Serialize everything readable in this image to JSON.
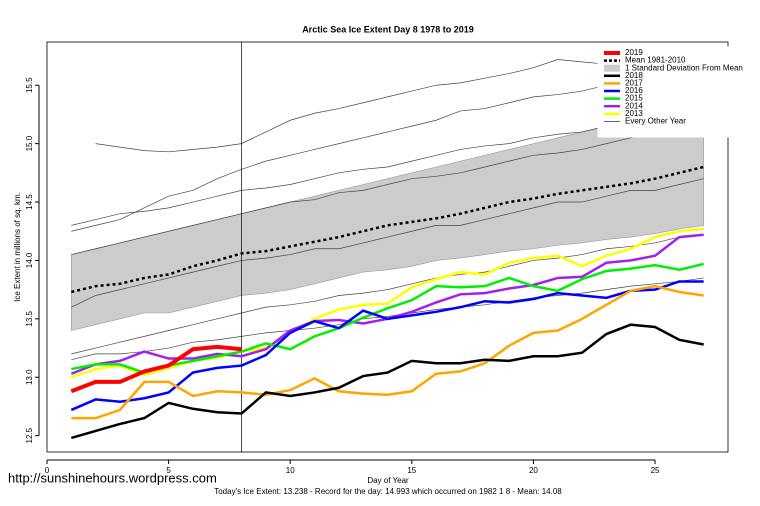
{
  "chart_data": {
    "type": "line",
    "title": "Arctic Sea Ice Extent Day 8 1978 to 2019",
    "x_label": "Day of Year",
    "y_label": "Ice Extent in millions of sq. km.",
    "footer": "Today's Ice Extent: 13.238 - Record for the day: 14.993 which occurred on 1982 1 8 - Mean: 14.08",
    "watermark": "http://sunshinehours.wordpress.com",
    "x": [
      1,
      2,
      3,
      4,
      5,
      6,
      7,
      8,
      9,
      10,
      11,
      12,
      13,
      14,
      15,
      16,
      17,
      18,
      19,
      20,
      21,
      22,
      23,
      24,
      25,
      26,
      27
    ],
    "xlim": [
      0,
      28
    ],
    "xticks": [
      0,
      5,
      10,
      15,
      20,
      25
    ],
    "ylim": [
      12.36,
      15.87
    ],
    "yticks": [
      12.5,
      {
        "value": 13,
        "label": "13.0"
      },
      13.5,
      {
        "value": 14,
        "label": "14.0"
      },
      14.5,
      {
        "value": 15,
        "label": "15.0"
      },
      15.5
    ],
    "vline": 8,
    "band": {
      "name": "1 Standard Deviation From Mean",
      "color": "#cccccc",
      "upper": [
        14.05,
        14.1,
        14.15,
        14.2,
        14.25,
        14.3,
        14.35,
        14.4,
        14.45,
        14.5,
        14.55,
        14.6,
        14.65,
        14.7,
        14.75,
        14.8,
        14.85,
        14.9,
        14.95,
        15.0,
        15.05,
        15.1,
        15.15,
        15.2,
        15.22,
        15.25,
        15.27
      ],
      "lower": [
        13.4,
        13.45,
        13.5,
        13.55,
        13.55,
        13.6,
        13.65,
        13.7,
        13.72,
        13.75,
        13.8,
        13.85,
        13.9,
        13.92,
        13.95,
        14.0,
        14.02,
        14.05,
        14.08,
        14.1,
        14.13,
        14.15,
        14.18,
        14.2,
        14.23,
        14.27,
        14.3
      ]
    },
    "other_years": {
      "name": "Every Other Year",
      "color": "#444444",
      "lines": [
        [
          null,
          15.0,
          14.97,
          14.94,
          14.93,
          14.95,
          14.97,
          15.0,
          15.1,
          15.2,
          15.26,
          15.3,
          15.35,
          15.4,
          15.45,
          15.5,
          15.52,
          15.56,
          15.6,
          15.65,
          15.72,
          15.7,
          15.68,
          15.7,
          15.72,
          15.7,
          15.72
        ],
        [
          14.25,
          14.3,
          14.35,
          14.45,
          14.55,
          14.6,
          14.7,
          14.78,
          14.85,
          14.9,
          14.95,
          15.0,
          15.05,
          15.1,
          15.15,
          15.2,
          15.28,
          15.3,
          15.35,
          15.4,
          15.42,
          15.45,
          15.5,
          15.48,
          15.52,
          15.55,
          15.58
        ],
        [
          14.05,
          14.1,
          14.15,
          14.2,
          14.25,
          14.3,
          14.35,
          14.4,
          14.45,
          14.5,
          14.52,
          14.58,
          14.6,
          14.65,
          14.7,
          14.72,
          14.75,
          14.8,
          14.85,
          14.9,
          14.92,
          14.95,
          15.0,
          15.05,
          15.1,
          15.15,
          15.2
        ],
        [
          13.6,
          13.7,
          13.75,
          13.8,
          13.85,
          13.9,
          13.95,
          14.0,
          14.02,
          14.05,
          14.1,
          14.1,
          14.15,
          14.2,
          14.25,
          14.3,
          14.3,
          14.35,
          14.4,
          14.45,
          14.5,
          14.5,
          14.55,
          14.6,
          14.6,
          14.65,
          14.7
        ],
        [
          13.2,
          13.25,
          13.3,
          13.35,
          13.4,
          13.45,
          13.5,
          13.55,
          13.6,
          13.62,
          13.65,
          13.7,
          13.72,
          13.75,
          13.8,
          13.85,
          13.88,
          13.9,
          13.95,
          14.0,
          14.02,
          14.05,
          14.1,
          14.12,
          14.15,
          14.2,
          14.22
        ],
        [
          13.15,
          13.2,
          13.2,
          13.22,
          13.25,
          13.3,
          13.32,
          13.35,
          13.38,
          13.4,
          13.42,
          13.45,
          13.5,
          13.52,
          13.55,
          13.58,
          13.6,
          13.62,
          13.65,
          13.68,
          13.7,
          13.72,
          13.75,
          13.78,
          13.8,
          13.82,
          13.85
        ],
        [
          14.3,
          14.35,
          14.4,
          14.42,
          14.45,
          14.5,
          14.55,
          14.6,
          14.62,
          14.65,
          14.7,
          14.75,
          14.78,
          14.8,
          14.85,
          14.9,
          14.95,
          14.98,
          15.0,
          15.05,
          15.08,
          15.1,
          15.15,
          15.2,
          15.22,
          15.25,
          15.3
        ]
      ]
    },
    "series": [
      {
        "name": "2019",
        "color": "#ff0000",
        "width": 4,
        "values": [
          12.88,
          12.96,
          12.96,
          13.05,
          13.1,
          13.24,
          13.26,
          13.24,
          null,
          null,
          null,
          null,
          null,
          null,
          null,
          null,
          null,
          null,
          null,
          null,
          null,
          null,
          null,
          null,
          null,
          null,
          null
        ]
      },
      {
        "name": "Mean 1981-2010",
        "color": "#000000",
        "width": 2.5,
        "dash": true,
        "values": [
          13.73,
          13.78,
          13.8,
          13.85,
          13.88,
          13.95,
          14.0,
          14.06,
          14.08,
          14.12,
          14.16,
          14.2,
          14.25,
          14.3,
          14.33,
          14.36,
          14.4,
          14.45,
          14.5,
          14.53,
          14.57,
          14.6,
          14.63,
          14.66,
          14.7,
          14.75,
          14.8
        ]
      },
      {
        "name": "2018",
        "color": "#000000",
        "width": 2.5,
        "values": [
          12.48,
          12.54,
          12.6,
          12.65,
          12.78,
          12.73,
          12.7,
          12.69,
          12.87,
          12.84,
          12.87,
          12.91,
          13.01,
          13.04,
          13.14,
          13.12,
          13.12,
          13.15,
          13.14,
          13.18,
          13.18,
          13.21,
          13.37,
          13.45,
          13.43,
          13.32,
          13.28
        ]
      },
      {
        "name": "2017",
        "color": "#ffa500",
        "width": 2.5,
        "values": [
          12.65,
          12.65,
          12.72,
          12.96,
          12.96,
          12.84,
          12.88,
          12.87,
          12.85,
          12.89,
          12.99,
          12.88,
          12.86,
          12.85,
          12.88,
          13.03,
          13.05,
          13.12,
          13.27,
          13.38,
          13.4,
          13.5,
          13.62,
          13.74,
          13.78,
          13.73,
          13.7
        ]
      },
      {
        "name": "2016",
        "color": "#0000ff",
        "width": 2.5,
        "values": [
          12.72,
          12.81,
          12.79,
          12.82,
          12.87,
          13.04,
          13.08,
          13.1,
          13.19,
          13.38,
          13.48,
          13.42,
          13.57,
          13.5,
          13.53,
          13.56,
          13.6,
          13.65,
          13.64,
          13.67,
          13.72,
          13.7,
          13.68,
          13.74,
          13.75,
          13.82,
          13.82
        ]
      },
      {
        "name": "2015",
        "color": "#00ee00",
        "width": 2.5,
        "values": [
          13.07,
          13.11,
          13.11,
          13.04,
          13.1,
          13.14,
          13.18,
          13.22,
          13.29,
          13.24,
          13.35,
          13.42,
          13.51,
          13.59,
          13.66,
          13.78,
          13.77,
          13.78,
          13.85,
          13.78,
          13.74,
          13.84,
          13.91,
          13.93,
          13.96,
          13.92,
          13.97
        ]
      },
      {
        "name": "2014",
        "color": "#a020f0",
        "width": 2.5,
        "values": [
          13.03,
          13.11,
          13.14,
          13.22,
          13.16,
          13.16,
          13.2,
          13.18,
          13.24,
          13.4,
          13.48,
          13.49,
          13.46,
          13.5,
          13.56,
          13.64,
          13.71,
          13.72,
          13.76,
          13.79,
          13.85,
          13.86,
          13.98,
          14.0,
          14.04,
          14.2,
          14.22
        ]
      },
      {
        "name": "2013",
        "color": "#ffff00",
        "width": 2.5,
        "values": [
          13.0,
          13.07,
          13.1,
          13.02,
          13.08,
          13.14,
          13.17,
          13.22,
          13.25,
          13.38,
          13.5,
          13.58,
          13.62,
          13.63,
          13.77,
          13.84,
          13.9,
          13.88,
          13.98,
          14.02,
          14.04,
          13.95,
          14.04,
          14.1,
          14.2,
          14.25,
          14.27
        ]
      }
    ]
  }
}
